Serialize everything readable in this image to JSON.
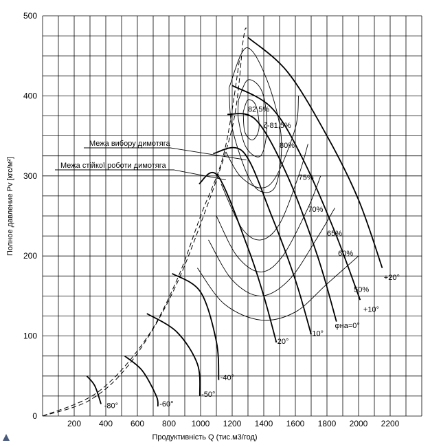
{
  "chart_data": {
    "type": "line",
    "title": "",
    "xlabel": "Продуктивність Q (тис.м3/год)",
    "ylabel": "Полное давление  Pv [кгс/м²]",
    "xlim": [
      0,
      2400
    ],
    "ylim": [
      0,
      500
    ],
    "x_grid_step": 100,
    "y_grid_step": 25,
    "grid": true,
    "x_ticks": [
      200,
      400,
      600,
      800,
      1000,
      1200,
      1400,
      1600,
      1800,
      2000,
      2200
    ],
    "y_ticks": [
      0,
      100,
      200,
      300,
      400,
      500
    ],
    "annotations": [
      {
        "text": "Межа вибору димотяга",
        "target": [
          1290,
          320
        ]
      },
      {
        "text": "Межа стійкої роботи димотяга",
        "target": [
          1160,
          295
        ]
      }
    ],
    "blade_angle_curves": [
      {
        "label": "+20°",
        "points": [
          [
            1300,
            473
          ],
          [
            1550,
            430
          ],
          [
            1800,
            350
          ],
          [
            2000,
            270
          ],
          [
            2150,
            185
          ]
        ],
        "label_at": [
          2160,
          170
        ]
      },
      {
        "label": "+10°",
        "points": [
          [
            1200,
            413
          ],
          [
            1450,
            385
          ],
          [
            1650,
            320
          ],
          [
            1850,
            230
          ],
          [
            2010,
            145
          ]
        ],
        "label_at": [
          2030,
          130
        ]
      },
      {
        "label": "φна=0°",
        "points": [
          [
            1170,
            377
          ],
          [
            1350,
            370
          ],
          [
            1550,
            300
          ],
          [
            1740,
            200
          ],
          [
            1860,
            118
          ]
        ],
        "label_at": [
          1850,
          110
        ]
      },
      {
        "label": "-10°",
        "points": [
          [
            1080,
            328
          ],
          [
            1270,
            330
          ],
          [
            1450,
            250
          ],
          [
            1600,
            170
          ],
          [
            1700,
            102
          ]
        ],
        "label_at": [
          1690,
          100
        ]
      },
      {
        "label": "-20°",
        "points": [
          [
            990,
            290
          ],
          [
            1110,
            300
          ],
          [
            1300,
            210
          ],
          [
            1400,
            150
          ],
          [
            1480,
            92
          ]
        ],
        "label_at": [
          1470,
          90
        ]
      },
      {
        "label": "-40°",
        "points": [
          [
            820,
            178
          ],
          [
            1000,
            155
          ],
          [
            1100,
            93
          ],
          [
            1115,
            45
          ]
        ],
        "label_at": [
          1125,
          45
        ]
      },
      {
        "label": "-50°",
        "points": [
          [
            660,
            128
          ],
          [
            850,
            105
          ],
          [
            980,
            65
          ],
          [
            995,
            25
          ]
        ],
        "label_at": [
          1005,
          24
        ]
      },
      {
        "label": "-60°",
        "points": [
          [
            520,
            75
          ],
          [
            630,
            57
          ],
          [
            720,
            25
          ],
          [
            730,
            12
          ]
        ],
        "label_at": [
          740,
          12
        ]
      },
      {
        "label": "-80°",
        "points": [
          [
            280,
            50
          ],
          [
            330,
            38
          ],
          [
            370,
            15
          ]
        ],
        "label_at": [
          390,
          10
        ]
      }
    ],
    "efficiency_contours": [
      {
        "label": "82,5%",
        "label_at": [
          1300,
          380
        ]
      },
      {
        "label": "ζ-81,5%",
        "label_at": [
          1400,
          360
        ]
      },
      {
        "label": "80%",
        "label_at": [
          1500,
          335
        ]
      },
      {
        "label": "75%",
        "label_at": [
          1620,
          295
        ]
      },
      {
        "label": "70%",
        "label_at": [
          1680,
          255
        ]
      },
      {
        "label": "65%",
        "label_at": [
          1800,
          225
        ]
      },
      {
        "label": "60%",
        "label_at": [
          1870,
          200
        ]
      },
      {
        "label": "50%",
        "label_at": [
          1970,
          155
        ]
      }
    ],
    "boundary_dashed": [
      {
        "name": "Межа вибору димотяга",
        "points": [
          [
            0,
            0
          ],
          [
            300,
            20
          ],
          [
            550,
            65
          ],
          [
            800,
            145
          ],
          [
            1000,
            240
          ],
          [
            1200,
            360
          ],
          [
            1270,
            470
          ],
          [
            1290,
            485
          ]
        ]
      },
      {
        "name": "Межа стійкої роботи димотяга",
        "points": [
          [
            0,
            0
          ],
          [
            350,
            30
          ],
          [
            650,
            95
          ],
          [
            850,
            170
          ],
          [
            1000,
            250
          ],
          [
            1150,
            330
          ],
          [
            1250,
            450
          ]
        ]
      }
    ]
  }
}
